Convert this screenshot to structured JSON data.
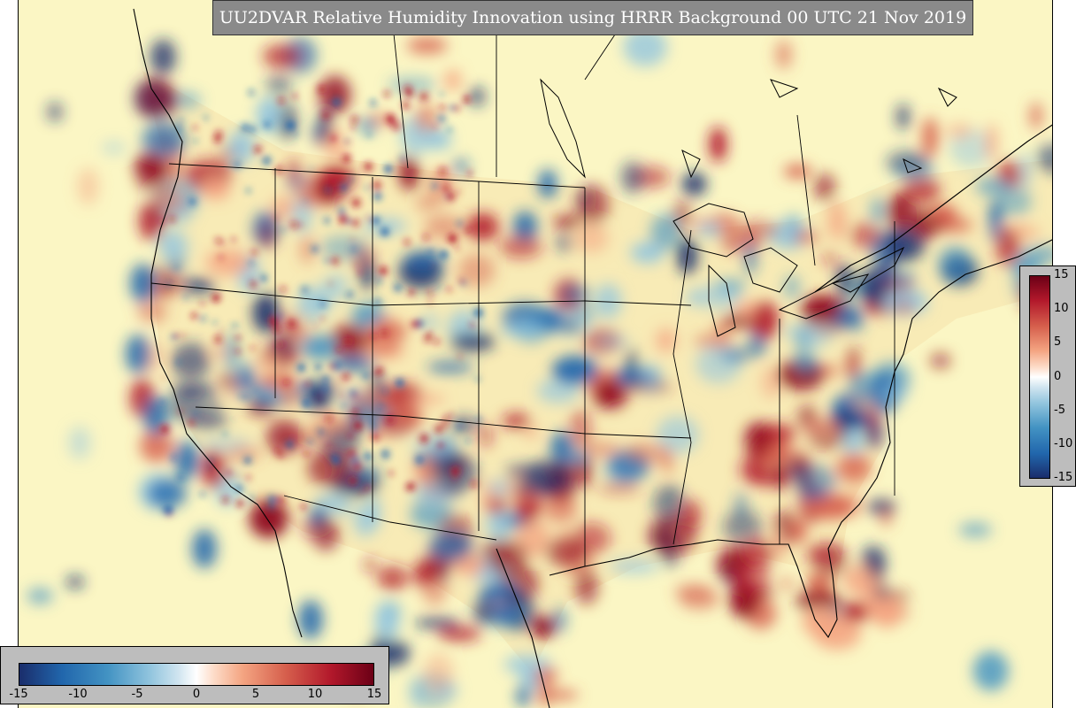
{
  "title": "UU2DVAR Relative Humidity Innovation using HRRR Background 00 UTC 21 Nov 2019",
  "colorbar": {
    "ticks": [
      "-15",
      "-10",
      "-5",
      "0",
      "5",
      "10",
      "15"
    ],
    "range": [
      -15,
      15
    ]
  },
  "colors": {
    "ocean": "#fbf6c4",
    "negative": "#2166ac",
    "positive": "#b2182b",
    "title_box": "#8a8a8a",
    "colorbar_box": "#bdbdbd"
  }
}
